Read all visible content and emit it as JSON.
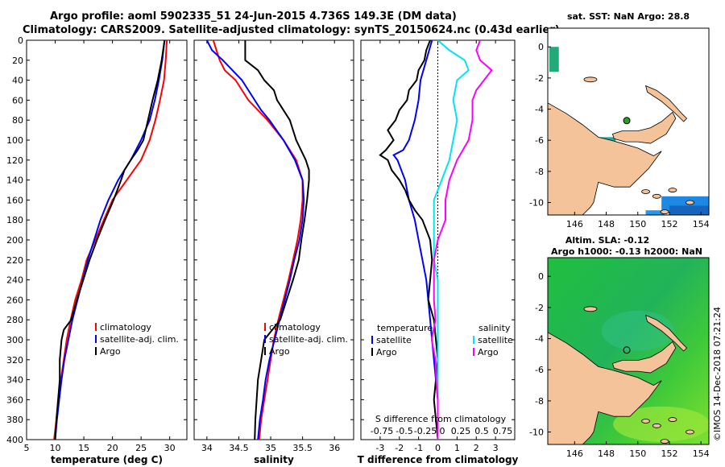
{
  "header": {
    "line1": "Argo profile: aoml 5902335_51 24-Jun-2015 4.736S 149.3E (DM data)",
    "line2": "Climatology: CARS2009. Satellite-adjusted climatology: synTS_20150624.nc (0.43d earlier)"
  },
  "footer": {
    "stamp": "©IMOS 14-Dec-2018 07:21:24"
  },
  "colors": {
    "climatology": "#ff0000",
    "satellite": "#0000ff",
    "argo": "#000000",
    "sal_satellite": "#00e5ee",
    "sal_climatology": "#ff00ff",
    "land": "#f5c39a",
    "sst_water": "#ffffff"
  },
  "chart_data": [
    {
      "type": "line",
      "id": "temperature",
      "xlabel": "temperature (deg C)",
      "ylabel": "",
      "xlim": [
        5,
        33
      ],
      "ylim": [
        400,
        0
      ],
      "xticks": [
        "5",
        "10",
        "15",
        "20",
        "25",
        "30"
      ],
      "xtick_values": [
        5,
        10,
        15,
        20,
        25,
        30
      ],
      "yticks": [
        "0",
        "20",
        "40",
        "60",
        "80",
        "100",
        "120",
        "140",
        "160",
        "180",
        "200",
        "220",
        "240",
        "260",
        "280",
        "300",
        "320",
        "340",
        "360",
        "380",
        "400"
      ],
      "legend": [
        "climatology",
        "satellite-adj. clim.",
        "Argo"
      ],
      "series": [
        {
          "name": "climatology",
          "color": "#ff0000",
          "depth": [
            0,
            20,
            40,
            60,
            80,
            100,
            120,
            140,
            160,
            180,
            200,
            220,
            240,
            260,
            280,
            300,
            320,
            340,
            360,
            380,
            400
          ],
          "values": [
            29.5,
            29.3,
            29.0,
            28.3,
            27.5,
            26.5,
            25.0,
            22.5,
            20.0,
            18.5,
            17.0,
            15.5,
            14.6,
            13.5,
            12.7,
            12.0,
            11.5,
            11.0,
            10.6,
            10.2,
            9.8
          ]
        },
        {
          "name": "satellite-adj. clim.",
          "color": "#0000ff",
          "depth": [
            0,
            20,
            40,
            60,
            80,
            100,
            120,
            140,
            160,
            180,
            200,
            220,
            240,
            260,
            280,
            300,
            320,
            340,
            360,
            380,
            400
          ],
          "values": [
            29.1,
            28.7,
            28.1,
            27.4,
            26.5,
            25.0,
            23.2,
            21.0,
            19.3,
            17.9,
            16.8,
            15.7,
            14.8,
            13.9,
            13.0,
            12.3,
            11.6,
            11.1,
            10.7,
            10.3,
            10.0
          ]
        },
        {
          "name": "Argo",
          "color": "#000000",
          "depth": [
            0,
            20,
            40,
            60,
            80,
            100,
            110,
            120,
            130,
            140,
            160,
            180,
            200,
            220,
            240,
            260,
            280,
            290,
            300,
            320,
            340,
            360,
            380,
            400
          ],
          "values": [
            29.1,
            28.6,
            27.9,
            27.0,
            26.2,
            25.4,
            24.4,
            23.2,
            22.1,
            21.5,
            20.2,
            18.7,
            17.3,
            16.0,
            14.9,
            13.8,
            12.8,
            11.5,
            11.1,
            10.8,
            10.8,
            10.5,
            10.2,
            10.0
          ]
        }
      ]
    },
    {
      "type": "line",
      "id": "salinity",
      "xlabel": "salinity",
      "xlim": [
        33.8,
        36.3
      ],
      "ylim": [
        400,
        0
      ],
      "xticks": [
        "34",
        "34.5",
        "35",
        "35.5",
        "36"
      ],
      "xtick_values": [
        34,
        34.5,
        35,
        35.5,
        36
      ],
      "legend": [
        "climatology",
        "satellite-adj. clim.",
        "Argo"
      ],
      "series": [
        {
          "name": "climatology",
          "color": "#ff0000",
          "depth": [
            0,
            10,
            20,
            30,
            40,
            50,
            60,
            70,
            80,
            100,
            120,
            140,
            160,
            180,
            200,
            220,
            240,
            260,
            280,
            300,
            320,
            340,
            360,
            380,
            400
          ],
          "values": [
            34.1,
            34.15,
            34.2,
            34.28,
            34.45,
            34.55,
            34.65,
            34.8,
            34.95,
            35.2,
            35.4,
            35.5,
            35.5,
            35.47,
            35.42,
            35.35,
            35.28,
            35.2,
            35.12,
            35.05,
            35.0,
            34.95,
            34.9,
            34.85,
            34.82
          ]
        },
        {
          "name": "satellite-adj. clim.",
          "color": "#0000ff",
          "depth": [
            0,
            10,
            20,
            30,
            40,
            50,
            60,
            70,
            80,
            100,
            120,
            140,
            160,
            180,
            200,
            220,
            240,
            260,
            280,
            300,
            320,
            340,
            360,
            380,
            400
          ],
          "values": [
            34.0,
            34.08,
            34.25,
            34.4,
            34.55,
            34.65,
            34.75,
            34.85,
            34.98,
            35.2,
            35.38,
            35.5,
            35.52,
            35.5,
            35.45,
            35.37,
            35.3,
            35.22,
            35.14,
            35.06,
            34.98,
            34.92,
            34.88,
            34.83,
            34.8
          ]
        },
        {
          "name": "Argo",
          "color": "#000000",
          "depth": [
            0,
            10,
            20,
            30,
            40,
            50,
            60,
            70,
            80,
            100,
            120,
            130,
            140,
            160,
            180,
            200,
            220,
            240,
            260,
            280,
            300,
            320,
            340,
            360,
            380,
            400
          ],
          "values": [
            34.6,
            34.6,
            34.6,
            34.8,
            34.9,
            35.05,
            35.1,
            35.2,
            35.3,
            35.4,
            35.55,
            35.6,
            35.6,
            35.57,
            35.53,
            35.48,
            35.44,
            35.35,
            35.25,
            35.15,
            34.9,
            34.85,
            34.8,
            34.78,
            34.76,
            34.75
          ]
        }
      ]
    },
    {
      "type": "line",
      "id": "difference",
      "xlabel": "T difference from climatology",
      "toplabel": "S difference from climatology",
      "xlim": [
        -4,
        4
      ],
      "ylim": [
        400,
        0
      ],
      "xticks": [
        "-3",
        "-2",
        "-1",
        "0",
        "1",
        "2",
        "3"
      ],
      "xtick_values": [
        -3,
        -2,
        -1,
        0,
        1,
        2,
        3
      ],
      "sticks": [
        "-0.75",
        "-0.5",
        "-0.25",
        "0",
        "0.25",
        "0.5",
        "0.75"
      ],
      "legend_temp_title": "temperature",
      "legend_sal_title": "salinity",
      "legend_temp": [
        "satellite",
        "Argo"
      ],
      "legend_sal": [
        "satellite",
        "Argo"
      ],
      "series": [
        {
          "name": "T satellite",
          "color": "#0000ff",
          "depth": [
            0,
            20,
            40,
            60,
            80,
            100,
            110,
            115,
            120,
            140,
            160,
            180,
            200,
            220,
            240,
            260,
            280,
            300,
            320,
            340,
            360,
            380,
            400
          ],
          "values": [
            -0.3,
            -0.6,
            -0.9,
            -1.0,
            -1.2,
            -1.5,
            -1.8,
            -2.3,
            -2.1,
            -1.7,
            -1.5,
            -1.2,
            -1.0,
            -0.8,
            -0.6,
            -0.5,
            -0.4,
            -0.3,
            -0.2,
            -0.1,
            0.0,
            0.0,
            0.0
          ]
        },
        {
          "name": "T Argo",
          "color": "#000000",
          "depth": [
            0,
            10,
            20,
            30,
            40,
            50,
            60,
            70,
            80,
            90,
            100,
            110,
            115,
            120,
            130,
            140,
            150,
            160,
            170,
            180,
            200,
            220,
            240,
            260,
            280,
            300,
            320,
            340,
            360,
            380,
            400
          ],
          "values": [
            -0.4,
            -0.6,
            -0.7,
            -1.0,
            -1.1,
            -1.5,
            -1.6,
            -2.0,
            -2.2,
            -2.6,
            -2.3,
            -2.7,
            -3.0,
            -2.6,
            -2.4,
            -2.0,
            -1.7,
            -1.5,
            -1.2,
            -0.8,
            -0.4,
            -0.3,
            -0.4,
            -0.5,
            -0.2,
            -0.1,
            0.0,
            -0.1,
            -0.2,
            -0.1,
            0.0
          ]
        },
        {
          "name": "S satellite",
          "color": "#00e5ee",
          "depth": [
            0,
            10,
            20,
            30,
            40,
            60,
            80,
            100,
            120,
            140,
            160,
            180,
            200,
            220,
            240,
            260,
            280,
            300,
            320,
            340,
            360,
            380,
            400
          ],
          "values": [
            0.0,
            0.15,
            0.35,
            0.4,
            0.25,
            0.2,
            0.25,
            0.2,
            0.15,
            0.05,
            -0.05,
            -0.05,
            -0.05,
            -0.05,
            0.0,
            0.0,
            0.0,
            0.0,
            0.0,
            0.0,
            0.0,
            0.0,
            0.0
          ]
        },
        {
          "name": "S Argo",
          "color": "#ff00ff",
          "depth": [
            0,
            10,
            20,
            30,
            40,
            50,
            60,
            80,
            100,
            120,
            140,
            160,
            180,
            200,
            220,
            240,
            260,
            280,
            300,
            320,
            340,
            360,
            380,
            400
          ],
          "values": [
            0.55,
            0.5,
            0.55,
            0.7,
            0.6,
            0.5,
            0.45,
            0.45,
            0.4,
            0.25,
            0.15,
            0.1,
            0.1,
            0.0,
            -0.05,
            -0.05,
            -0.05,
            -0.03,
            -0.08,
            -0.03,
            -0.02,
            0.0,
            0.0,
            0.0
          ]
        }
      ]
    },
    {
      "type": "heatmap",
      "id": "sst-map",
      "title": "sat. SST: NaN Argo: 28.8",
      "xlim": [
        144.3,
        154.5
      ],
      "ylim": [
        -10.8,
        1.2
      ],
      "xticks": [
        "146",
        "148",
        "150",
        "152",
        "154"
      ],
      "xtick_values": [
        146,
        148,
        150,
        152,
        154
      ],
      "yticks": [
        "0",
        "-2",
        "-4",
        "-6",
        "-8",
        "-10"
      ],
      "ytick_values": [
        0,
        -2,
        -4,
        -6,
        -8,
        -10
      ],
      "argo_position": {
        "lon": 149.3,
        "lat": -4.736
      }
    },
    {
      "type": "heatmap",
      "id": "sla-map",
      "title_line1": "Altim. SLA: -0.12",
      "title_line2": "Argo h1000: -0.13 h2000: NaN",
      "xlim": [
        144.3,
        154.5
      ],
      "ylim": [
        -10.8,
        1.2
      ],
      "xticks": [
        "146",
        "148",
        "150",
        "152",
        "154"
      ],
      "xtick_values": [
        146,
        148,
        150,
        152,
        154
      ],
      "yticks": [
        "0",
        "-2",
        "-4",
        "-6",
        "-8",
        "-10"
      ],
      "ytick_values": [
        0,
        -2,
        -4,
        -6,
        -8,
        -10
      ],
      "argo_position": {
        "lon": 149.3,
        "lat": -4.736
      }
    }
  ]
}
